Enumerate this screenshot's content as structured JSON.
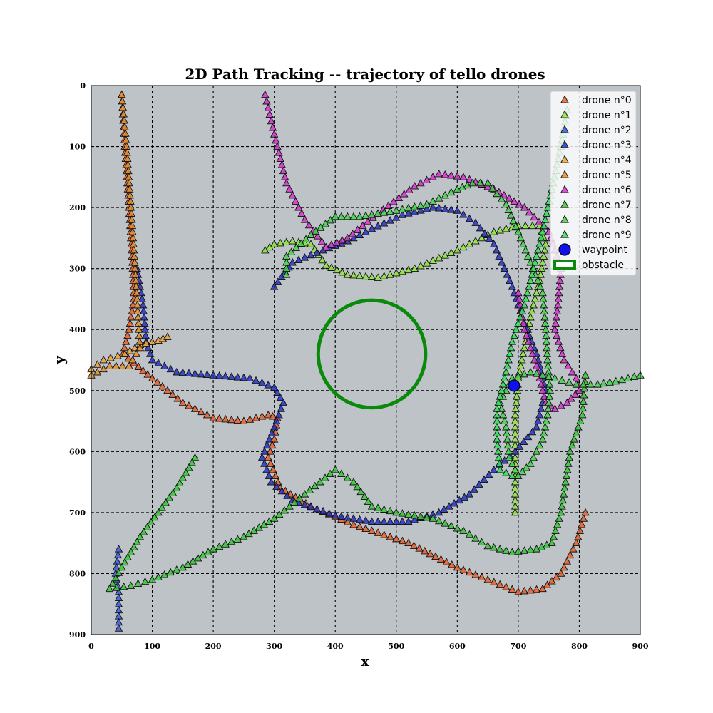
{
  "chart_data": {
    "type": "scatter",
    "title": "2D Path Tracking -- trajectory of tello drones",
    "xlabel": "x",
    "ylabel": "y",
    "xlim": [
      0,
      900
    ],
    "ylim": [
      0,
      900
    ],
    "y_inverted": true,
    "xticks": [
      0,
      100,
      200,
      300,
      400,
      500,
      600,
      700,
      800,
      900
    ],
    "yticks": [
      0,
      100,
      200,
      300,
      400,
      500,
      600,
      700,
      800,
      900
    ],
    "grid": true,
    "legend_position": "top-right",
    "marker": "triangle",
    "series": [
      {
        "name": "drone n°0",
        "color": "#e8602c",
        "waypoints": [
          [
            50,
            15
          ],
          [
            55,
            100
          ],
          [
            62,
            200
          ],
          [
            68,
            300
          ],
          [
            70,
            350
          ],
          [
            62,
            400
          ],
          [
            52,
            440
          ],
          [
            70,
            455
          ],
          [
            100,
            480
          ],
          [
            150,
            520
          ],
          [
            200,
            545
          ],
          [
            250,
            550
          ],
          [
            290,
            540
          ],
          [
            305,
            545
          ],
          [
            300,
            580
          ],
          [
            290,
            610
          ],
          [
            310,
            660
          ],
          [
            360,
            690
          ],
          [
            430,
            720
          ],
          [
            520,
            750
          ],
          [
            600,
            790
          ],
          [
            700,
            830
          ],
          [
            740,
            825
          ],
          [
            770,
            800
          ],
          [
            795,
            750
          ],
          [
            810,
            700
          ]
        ]
      },
      {
        "name": "drone n°1",
        "color": "#8fe63a",
        "waypoints": [
          [
            285,
            270
          ],
          [
            300,
            260
          ],
          [
            330,
            255
          ],
          [
            360,
            260
          ],
          [
            385,
            295
          ],
          [
            420,
            310
          ],
          [
            470,
            315
          ],
          [
            530,
            300
          ],
          [
            600,
            270
          ],
          [
            660,
            240
          ],
          [
            700,
            230
          ],
          [
            735,
            230
          ],
          [
            745,
            260
          ],
          [
            735,
            320
          ],
          [
            720,
            380
          ],
          [
            710,
            430
          ],
          [
            700,
            480
          ],
          [
            695,
            540
          ],
          [
            695,
            600
          ],
          [
            695,
            650
          ],
          [
            695,
            700
          ]
        ]
      },
      {
        "name": "drone n°2",
        "color": "#3b5ad6",
        "waypoints": [
          [
            45,
            760
          ],
          [
            40,
            800
          ],
          [
            45,
            830
          ],
          [
            45,
            860
          ],
          [
            45,
            890
          ]
        ]
      },
      {
        "name": "drone n°3",
        "color": "#2733c4",
        "waypoints": [
          [
            75,
            300
          ],
          [
            85,
            360
          ],
          [
            90,
            420
          ],
          [
            100,
            450
          ],
          [
            140,
            470
          ],
          [
            200,
            475
          ],
          [
            260,
            480
          ],
          [
            300,
            495
          ],
          [
            315,
            520
          ],
          [
            300,
            560
          ],
          [
            280,
            610
          ],
          [
            295,
            650
          ],
          [
            330,
            680
          ],
          [
            400,
            705
          ],
          [
            460,
            715
          ],
          [
            520,
            715
          ],
          [
            570,
            700
          ],
          [
            620,
            670
          ],
          [
            660,
            630
          ],
          [
            695,
            600
          ],
          [
            730,
            560
          ],
          [
            745,
            500
          ],
          [
            730,
            440
          ],
          [
            710,
            390
          ],
          [
            690,
            330
          ],
          [
            660,
            260
          ],
          [
            630,
            225
          ],
          [
            600,
            205
          ],
          [
            560,
            200
          ],
          [
            510,
            212
          ],
          [
            460,
            235
          ],
          [
            420,
            255
          ],
          [
            380,
            270
          ],
          [
            330,
            290
          ],
          [
            300,
            330
          ]
        ]
      },
      {
        "name": "drone n°4",
        "color": "#f0a43a",
        "waypoints": [
          [
            0,
            465
          ],
          [
            20,
            450
          ],
          [
            55,
            440
          ],
          [
            80,
            425
          ],
          [
            110,
            418
          ],
          [
            125,
            412
          ]
        ]
      },
      {
        "name": "drone n°5",
        "color": "#e58f2e",
        "waypoints": [
          [
            50,
            15
          ],
          [
            58,
            100
          ],
          [
            65,
            200
          ],
          [
            72,
            300
          ],
          [
            78,
            400
          ],
          [
            80,
            430
          ],
          [
            62,
            460
          ],
          [
            30,
            460
          ],
          [
            10,
            470
          ],
          [
            0,
            475
          ]
        ]
      },
      {
        "name": "drone n°6",
        "color": "#d633cf",
        "waypoints": [
          [
            285,
            15
          ],
          [
            300,
            80
          ],
          [
            320,
            160
          ],
          [
            350,
            220
          ],
          [
            385,
            265
          ],
          [
            420,
            250
          ],
          [
            470,
            210
          ],
          [
            530,
            165
          ],
          [
            570,
            145
          ],
          [
            610,
            150
          ],
          [
            660,
            170
          ],
          [
            710,
            200
          ],
          [
            750,
            240
          ],
          [
            770,
            300
          ],
          [
            765,
            360
          ],
          [
            760,
            400
          ],
          [
            775,
            450
          ],
          [
            795,
            480
          ],
          [
            800,
            500
          ],
          [
            780,
            520
          ],
          [
            760,
            530
          ],
          [
            745,
            520
          ],
          [
            730,
            460
          ],
          [
            710,
            400
          ],
          [
            700,
            340
          ]
        ]
      },
      {
        "name": "drone n°7",
        "color": "#37c737",
        "waypoints": [
          [
            170,
            610
          ],
          [
            140,
            660
          ],
          [
            110,
            700
          ],
          [
            80,
            740
          ],
          [
            50,
            790
          ],
          [
            30,
            825
          ],
          [
            65,
            820
          ],
          [
            100,
            810
          ],
          [
            150,
            790
          ],
          [
            200,
            760
          ],
          [
            250,
            740
          ],
          [
            300,
            710
          ],
          [
            350,
            670
          ],
          [
            400,
            630
          ],
          [
            430,
            650
          ],
          [
            460,
            690
          ],
          [
            500,
            700
          ],
          [
            560,
            710
          ],
          [
            610,
            730
          ],
          [
            650,
            755
          ],
          [
            690,
            765
          ],
          [
            730,
            760
          ],
          [
            755,
            750
          ],
          [
            770,
            700
          ],
          [
            785,
            600
          ],
          [
            805,
            540
          ],
          [
            810,
            475
          ]
        ]
      },
      {
        "name": "drone n°8",
        "color": "#43d64b",
        "waypoints": [
          [
            320,
            310
          ],
          [
            320,
            280
          ],
          [
            360,
            245
          ],
          [
            400,
            215
          ],
          [
            440,
            215
          ],
          [
            500,
            205
          ],
          [
            550,
            195
          ],
          [
            600,
            170
          ],
          [
            625,
            160
          ],
          [
            650,
            160
          ],
          [
            680,
            195
          ],
          [
            700,
            240
          ],
          [
            720,
            290
          ],
          [
            740,
            340
          ],
          [
            745,
            400
          ],
          [
            748,
            450
          ],
          [
            752,
            500
          ],
          [
            748,
            540
          ],
          [
            740,
            580
          ],
          [
            720,
            620
          ],
          [
            700,
            640
          ],
          [
            685,
            610
          ],
          [
            680,
            560
          ],
          [
            670,
            520
          ],
          [
            690,
            480
          ],
          [
            720,
            470
          ],
          [
            760,
            480
          ],
          [
            795,
            490
          ],
          [
            830,
            490
          ],
          [
            860,
            485
          ],
          [
            900,
            475
          ]
        ]
      },
      {
        "name": "drone n°9",
        "color": "#2ee058",
        "waypoints": [
          [
            780,
            40
          ],
          [
            770,
            100
          ],
          [
            755,
            170
          ],
          [
            740,
            240
          ],
          [
            725,
            300
          ],
          [
            710,
            360
          ],
          [
            690,
            420
          ],
          [
            680,
            470
          ],
          [
            665,
            530
          ],
          [
            665,
            580
          ],
          [
            670,
            630
          ],
          [
            690,
            640
          ]
        ]
      }
    ],
    "waypoint": {
      "name": "waypoint",
      "x": 693,
      "y": 492,
      "color": "#1010ee"
    },
    "obstacle": {
      "name": "obstacle",
      "cx": 460,
      "cy": 440,
      "r": 88,
      "color": "#0a8a0a"
    }
  }
}
